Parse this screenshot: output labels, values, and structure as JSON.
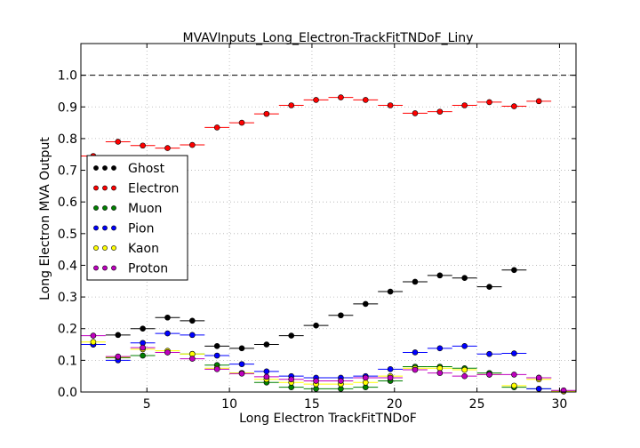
{
  "chart_data": {
    "type": "scatter",
    "title": "MVAVInputs_Long_Electron-TrackFitTNDoF_Liny",
    "xlabel": "Long Electron TrackFitTNDoF",
    "ylabel": "Long Electron MVA Output",
    "xlim": [
      1,
      31
    ],
    "ylim": [
      0,
      1.1
    ],
    "xticks": [
      5,
      10,
      15,
      20,
      25,
      30
    ],
    "yticks": [
      0.0,
      0.1,
      0.2,
      0.3,
      0.4,
      0.5,
      0.6,
      0.7,
      0.8,
      0.9,
      1.0
    ],
    "ytick_labels": [
      "0.0",
      "0.1",
      "0.2",
      "0.3",
      "0.4",
      "0.5",
      "0.6",
      "0.7",
      "0.8",
      "0.9",
      "1.0"
    ],
    "xtick_labels": [
      "5",
      "10",
      "15",
      "20",
      "25",
      "30"
    ],
    "reference_line_y": 1.0,
    "grid": true,
    "legend_position": "center-left",
    "x": [
      1.75,
      3.25,
      4.75,
      6.25,
      7.75,
      9.25,
      10.75,
      12.25,
      13.75,
      15.25,
      16.75,
      18.25,
      19.75,
      21.25,
      22.75,
      24.25,
      25.75,
      27.25,
      28.75,
      30.25
    ],
    "series": [
      {
        "name": "Ghost",
        "color": "#000000",
        "values": [
          0.15,
          0.18,
          0.2,
          0.235,
          0.225,
          0.145,
          0.138,
          0.15,
          0.178,
          0.21,
          0.242,
          0.278,
          0.317,
          0.348,
          0.368,
          0.36,
          0.332,
          0.385,
          0.045,
          null
        ]
      },
      {
        "name": "Electron",
        "color": "#ff0000",
        "values": [
          0.745,
          0.79,
          0.778,
          0.77,
          0.78,
          0.835,
          0.85,
          0.878,
          0.905,
          0.922,
          0.93,
          0.922,
          0.905,
          0.88,
          0.885,
          0.905,
          0.915,
          0.902,
          0.918,
          null
        ]
      },
      {
        "name": "Muon",
        "color": "#008000",
        "values": [
          0.15,
          0.108,
          0.115,
          0.125,
          0.12,
          0.085,
          0.06,
          0.03,
          0.015,
          0.01,
          0.01,
          0.015,
          0.035,
          0.08,
          0.08,
          0.075,
          0.06,
          0.015,
          0.01,
          null
        ]
      },
      {
        "name": "Pion",
        "color": "#0000ff",
        "values": [
          0.15,
          0.1,
          0.155,
          0.185,
          0.18,
          0.115,
          0.088,
          0.065,
          0.05,
          0.045,
          0.045,
          0.05,
          0.072,
          0.125,
          0.138,
          0.145,
          0.12,
          0.122,
          0.01,
          0.002
        ]
      },
      {
        "name": "Kaon",
        "color": "#ffff00",
        "values": [
          0.158,
          0.11,
          0.135,
          0.13,
          0.12,
          0.075,
          0.06,
          0.04,
          0.03,
          0.025,
          0.025,
          0.03,
          0.05,
          0.075,
          0.075,
          0.07,
          0.055,
          0.02,
          0.04,
          0.002
        ]
      },
      {
        "name": "Proton",
        "color": "#bf00bf",
        "values": [
          0.178,
          0.112,
          0.14,
          0.125,
          0.105,
          0.072,
          0.058,
          0.048,
          0.04,
          0.035,
          0.035,
          0.045,
          0.045,
          0.07,
          0.06,
          0.05,
          0.055,
          0.055,
          0.045,
          0.005
        ]
      }
    ]
  }
}
